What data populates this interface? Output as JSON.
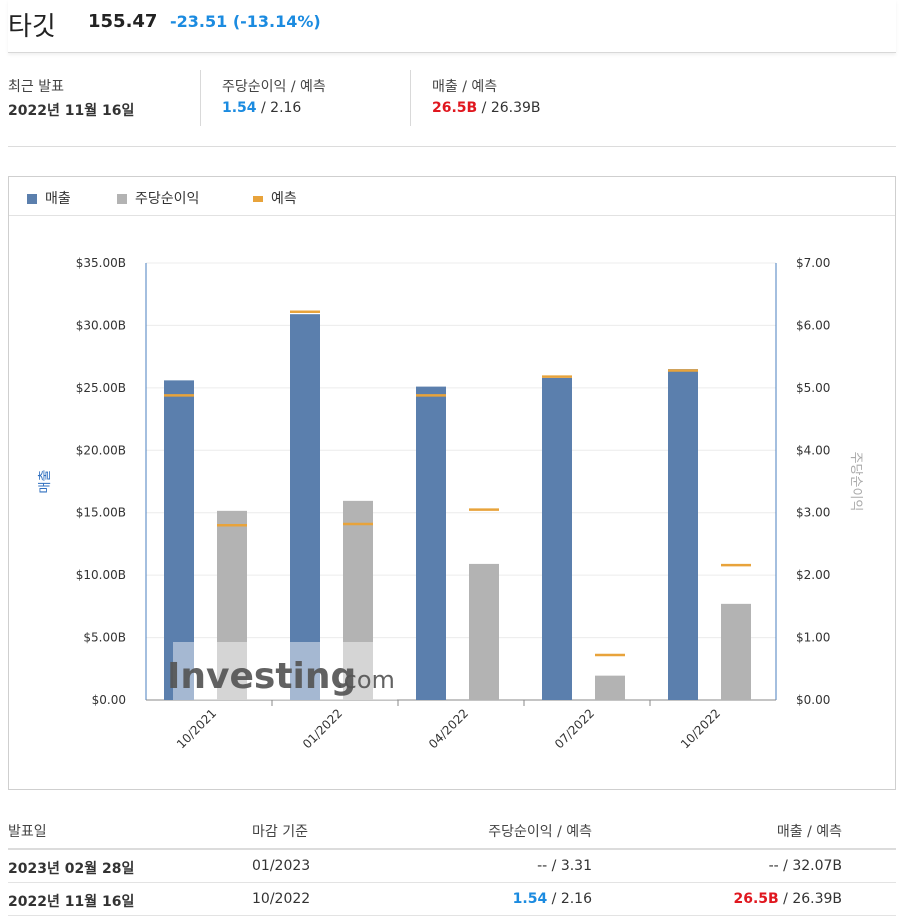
{
  "header": {
    "title": "타깃",
    "price": "155.47",
    "change": "-23.51 (-13.14%)"
  },
  "summary": {
    "release": {
      "label": "최근 발표",
      "value": "2022년 11월 16일"
    },
    "eps": {
      "label": "주당순이익 / 예측",
      "actual": "1.54",
      "sep": " / ",
      "forecast": "2.16"
    },
    "revenue": {
      "label": "매출 / 예측",
      "actual": "26.5B",
      "sep": " / ",
      "forecast": "26.39B"
    }
  },
  "legend": {
    "revenue": "매출",
    "eps": "주당순이익",
    "forecast": "예측"
  },
  "colors": {
    "revenue": "#5b7fad",
    "eps": "#b3b3b3",
    "forecast": "#e8a33b",
    "blue_text": "#1b8be0",
    "red_text": "#e0171f"
  },
  "watermark": {
    "brand": "Investing",
    "suffix": ".com"
  },
  "chart_data": {
    "type": "bar",
    "categories": [
      "10/2021",
      "01/2022",
      "04/2022",
      "07/2022",
      "10/2022"
    ],
    "series": [
      {
        "name": "매출",
        "axis": "left",
        "values": [
          25.6,
          30.9,
          25.1,
          25.8,
          26.5
        ]
      },
      {
        "name": "매출 예측",
        "axis": "left",
        "values": [
          24.4,
          31.1,
          24.4,
          25.9,
          26.39
        ]
      },
      {
        "name": "주당순이익",
        "axis": "right",
        "values": [
          3.03,
          3.19,
          2.18,
          0.39,
          1.54
        ]
      },
      {
        "name": "주당순이익 예측",
        "axis": "right",
        "values": [
          2.8,
          2.82,
          3.05,
          0.72,
          2.16
        ]
      }
    ],
    "ylabel": "매출",
    "y2label": "주당순이익",
    "ylim": [
      0,
      35
    ],
    "y2lim": [
      0,
      7
    ],
    "yticks": [
      "$0.00",
      "$5.00B",
      "$10.00B",
      "$15.00B",
      "$20.00B",
      "$25.00B",
      "$30.00B",
      "$35.00B"
    ],
    "y2ticks": [
      "$0.00",
      "$1.00",
      "$2.00",
      "$3.00",
      "$4.00",
      "$5.00",
      "$6.00",
      "$7.00"
    ],
    "grid": true,
    "legend_position": "top-left"
  },
  "table": {
    "headers": [
      "발표일",
      "마감 기준",
      "주당순이익",
      "/",
      "예측",
      "매출",
      "/",
      "예측"
    ],
    "rows": [
      {
        "date": "2023년 02월 28일",
        "period": "01/2023",
        "eps": "--",
        "eps_sep": " / ",
        "eps_forecast": "3.31",
        "rev": "--",
        "rev_sep": " / ",
        "rev_forecast": "32.07B"
      },
      {
        "date": "2022년 11월 16일",
        "period": "10/2022",
        "eps": "1.54",
        "eps_sep": " / ",
        "eps_forecast": "2.16",
        "rev": "26.5B",
        "rev_sep": " / ",
        "rev_forecast": "26.39B"
      }
    ]
  }
}
